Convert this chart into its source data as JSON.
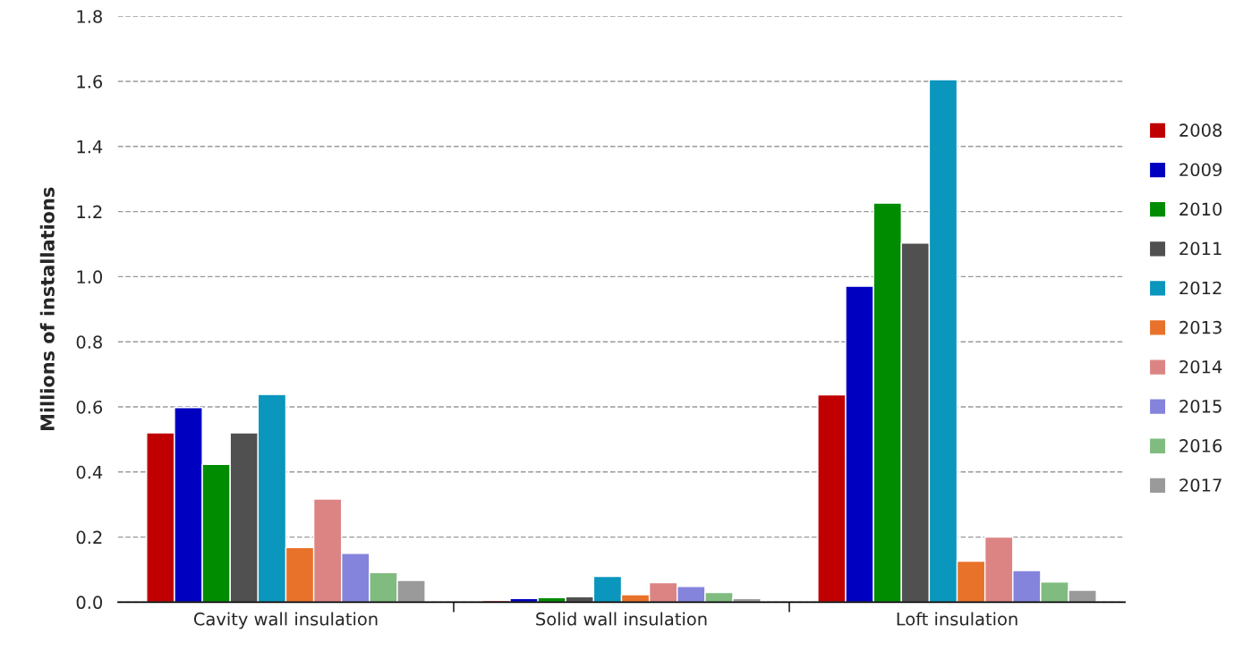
{
  "chart_data": {
    "type": "bar",
    "ylabel": "Millions of installations",
    "categories": [
      "Cavity wall insulation",
      "Solid wall insulation",
      "Loft insulation"
    ],
    "series": [
      {
        "name": "2008",
        "color": "#c00000",
        "values": [
          0.52,
          0.005,
          0.637
        ]
      },
      {
        "name": "2009",
        "color": "#0000c0",
        "values": [
          0.598,
          0.011,
          0.971
        ]
      },
      {
        "name": "2010",
        "color": "#008c00",
        "values": [
          0.423,
          0.014,
          1.226
        ]
      },
      {
        "name": "2011",
        "color": "#505050",
        "values": [
          0.52,
          0.017,
          1.103
        ]
      },
      {
        "name": "2012",
        "color": "#0a96bd",
        "values": [
          0.638,
          0.079,
          1.605
        ]
      },
      {
        "name": "2013",
        "color": "#e8722a",
        "values": [
          0.168,
          0.023,
          0.126
        ]
      },
      {
        "name": "2014",
        "color": "#dc8484",
        "values": [
          0.317,
          0.06,
          0.2
        ]
      },
      {
        "name": "2015",
        "color": "#8484dc",
        "values": [
          0.15,
          0.048,
          0.097
        ]
      },
      {
        "name": "2016",
        "color": "#80bc80",
        "values": [
          0.091,
          0.03,
          0.062
        ]
      },
      {
        "name": "2017",
        "color": "#9a9a9a",
        "values": [
          0.067,
          0.011,
          0.037
        ]
      }
    ],
    "ylim": [
      0,
      1.8
    ],
    "yticks": [
      {
        "value": 0,
        "label": "0.0"
      },
      0.2,
      0.4,
      0.6,
      0.8,
      {
        "value": 1,
        "label": "1.0"
      },
      1.2,
      1.4,
      1.6,
      1.8
    ],
    "grid": "y",
    "legend": "right"
  }
}
